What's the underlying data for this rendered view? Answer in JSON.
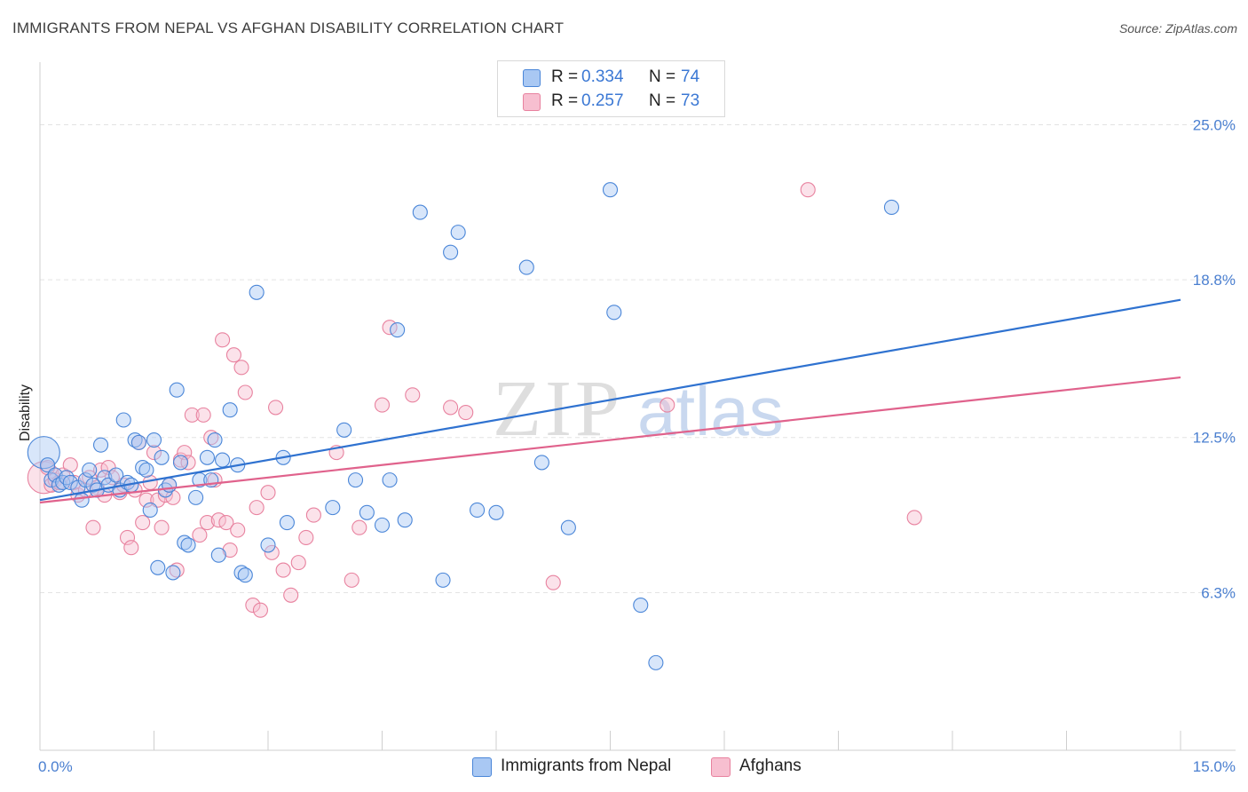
{
  "title": "IMMIGRANTS FROM NEPAL VS AFGHAN DISABILITY CORRELATION CHART",
  "source": "Source: ZipAtlas.com",
  "watermark": {
    "zip": "ZIP",
    "atlas": "atlas"
  },
  "legend": [
    {
      "r_label": "R =",
      "r_value": "0.334",
      "n_label": "N =",
      "n_value": "74",
      "color": "#a9c8f3"
    },
    {
      "r_label": "R =",
      "r_value": "0.257",
      "n_label": "N =",
      "n_value": "73",
      "color": "#f7bfd0"
    }
  ],
  "bottom_legend": [
    {
      "label": "Immigrants from Nepal",
      "color": "#a9c8f3"
    },
    {
      "label": "Afghans",
      "color": "#f7bfd0"
    }
  ],
  "chart_data": {
    "type": "scatter",
    "xlabel": "",
    "ylabel": "Disability",
    "xlim": [
      0,
      15
    ],
    "ylim": [
      0,
      27.5
    ],
    "x_tick_labels": [
      "0.0%",
      "15.0%"
    ],
    "y_ticks": [
      6.3,
      12.5,
      18.8,
      25.0
    ],
    "y_tick_labels": [
      "6.3%",
      "12.5%",
      "18.8%",
      "25.0%"
    ],
    "grid": "horizontal dashed",
    "series": [
      {
        "name": "Immigrants from Nepal",
        "color": "#4a86d8",
        "fill": "#a9c8f3",
        "trend": {
          "x": [
            0,
            15
          ],
          "y": [
            10.0,
            18.0
          ],
          "color": "#2f72d0"
        },
        "points": [
          [
            0.05,
            11.9
          ],
          [
            0.1,
            11.4
          ],
          [
            0.15,
            10.8
          ],
          [
            0.2,
            11.0
          ],
          [
            0.25,
            10.6
          ],
          [
            0.3,
            10.7
          ],
          [
            0.35,
            10.9
          ],
          [
            0.4,
            10.7
          ],
          [
            0.5,
            10.5
          ],
          [
            0.55,
            10.0
          ],
          [
            0.6,
            10.8
          ],
          [
            0.65,
            11.2
          ],
          [
            0.7,
            10.6
          ],
          [
            0.75,
            10.4
          ],
          [
            0.8,
            12.2
          ],
          [
            0.85,
            10.9
          ],
          [
            0.9,
            10.6
          ],
          [
            1.0,
            11.0
          ],
          [
            1.05,
            10.4
          ],
          [
            1.1,
            13.2
          ],
          [
            1.15,
            10.7
          ],
          [
            1.2,
            10.6
          ],
          [
            1.25,
            12.4
          ],
          [
            1.3,
            12.3
          ],
          [
            1.35,
            11.3
          ],
          [
            1.4,
            11.2
          ],
          [
            1.45,
            9.6
          ],
          [
            1.5,
            12.4
          ],
          [
            1.55,
            7.3
          ],
          [
            1.6,
            11.7
          ],
          [
            1.65,
            10.4
          ],
          [
            1.7,
            10.6
          ],
          [
            1.75,
            7.1
          ],
          [
            1.8,
            14.4
          ],
          [
            1.85,
            11.5
          ],
          [
            1.9,
            8.3
          ],
          [
            1.95,
            8.2
          ],
          [
            2.05,
            10.1
          ],
          [
            2.1,
            10.8
          ],
          [
            2.2,
            11.7
          ],
          [
            2.25,
            10.8
          ],
          [
            2.3,
            12.4
          ],
          [
            2.35,
            7.8
          ],
          [
            2.4,
            11.6
          ],
          [
            2.5,
            13.6
          ],
          [
            2.6,
            11.4
          ],
          [
            2.65,
            7.1
          ],
          [
            2.7,
            7.0
          ],
          [
            2.85,
            18.3
          ],
          [
            3.0,
            8.2
          ],
          [
            3.2,
            11.7
          ],
          [
            3.25,
            9.1
          ],
          [
            3.85,
            9.7
          ],
          [
            4.0,
            12.8
          ],
          [
            4.15,
            10.8
          ],
          [
            4.3,
            9.5
          ],
          [
            4.5,
            9.0
          ],
          [
            4.6,
            10.8
          ],
          [
            4.7,
            16.8
          ],
          [
            4.8,
            9.2
          ],
          [
            5.0,
            21.5
          ],
          [
            5.3,
            6.8
          ],
          [
            5.4,
            19.9
          ],
          [
            5.5,
            20.7
          ],
          [
            5.75,
            9.6
          ],
          [
            6.0,
            9.5
          ],
          [
            6.4,
            19.3
          ],
          [
            6.6,
            11.5
          ],
          [
            6.95,
            8.9
          ],
          [
            7.5,
            22.4
          ],
          [
            7.55,
            17.5
          ],
          [
            7.9,
            5.8
          ],
          [
            8.1,
            3.5
          ],
          [
            11.2,
            21.7
          ]
        ]
      },
      {
        "name": "Afghans",
        "color": "#e8829f",
        "fill": "#f7bfd0",
        "trend": {
          "x": [
            0,
            15
          ],
          "y": [
            9.9,
            14.9
          ],
          "color": "#e0628c"
        },
        "points": [
          [
            0.05,
            10.9
          ],
          [
            0.1,
            11.3
          ],
          [
            0.15,
            10.6
          ],
          [
            0.2,
            10.8
          ],
          [
            0.25,
            10.7
          ],
          [
            0.3,
            11.0
          ],
          [
            0.4,
            11.4
          ],
          [
            0.45,
            10.7
          ],
          [
            0.5,
            10.2
          ],
          [
            0.6,
            10.4
          ],
          [
            0.65,
            10.9
          ],
          [
            0.7,
            8.9
          ],
          [
            0.75,
            10.5
          ],
          [
            0.8,
            11.2
          ],
          [
            0.85,
            10.2
          ],
          [
            0.9,
            11.3
          ],
          [
            0.95,
            10.9
          ],
          [
            1.05,
            10.3
          ],
          [
            1.1,
            10.6
          ],
          [
            1.15,
            8.5
          ],
          [
            1.2,
            8.1
          ],
          [
            1.25,
            10.4
          ],
          [
            1.3,
            12.3
          ],
          [
            1.35,
            9.1
          ],
          [
            1.4,
            10.0
          ],
          [
            1.45,
            10.7
          ],
          [
            1.5,
            11.9
          ],
          [
            1.55,
            10.0
          ],
          [
            1.6,
            8.9
          ],
          [
            1.65,
            10.2
          ],
          [
            1.7,
            10.6
          ],
          [
            1.75,
            10.1
          ],
          [
            1.8,
            7.2
          ],
          [
            1.85,
            11.6
          ],
          [
            1.9,
            11.9
          ],
          [
            1.95,
            11.5
          ],
          [
            2.0,
            13.4
          ],
          [
            2.1,
            8.6
          ],
          [
            2.15,
            13.4
          ],
          [
            2.2,
            9.1
          ],
          [
            2.25,
            12.5
          ],
          [
            2.3,
            10.8
          ],
          [
            2.35,
            9.2
          ],
          [
            2.4,
            16.4
          ],
          [
            2.45,
            9.1
          ],
          [
            2.5,
            8.0
          ],
          [
            2.55,
            15.8
          ],
          [
            2.6,
            8.8
          ],
          [
            2.65,
            15.3
          ],
          [
            2.7,
            14.3
          ],
          [
            2.8,
            5.8
          ],
          [
            2.85,
            9.7
          ],
          [
            2.9,
            5.6
          ],
          [
            3.0,
            10.3
          ],
          [
            3.05,
            7.9
          ],
          [
            3.1,
            13.7
          ],
          [
            3.2,
            7.2
          ],
          [
            3.3,
            6.2
          ],
          [
            3.4,
            7.5
          ],
          [
            3.5,
            8.5
          ],
          [
            3.6,
            9.4
          ],
          [
            3.9,
            11.9
          ],
          [
            4.1,
            6.8
          ],
          [
            4.2,
            8.9
          ],
          [
            4.5,
            13.8
          ],
          [
            4.6,
            16.9
          ],
          [
            4.9,
            14.2
          ],
          [
            5.4,
            13.7
          ],
          [
            5.6,
            13.5
          ],
          [
            6.75,
            6.7
          ],
          [
            8.25,
            13.8
          ],
          [
            10.1,
            22.4
          ],
          [
            11.5,
            9.3
          ]
        ]
      }
    ]
  }
}
